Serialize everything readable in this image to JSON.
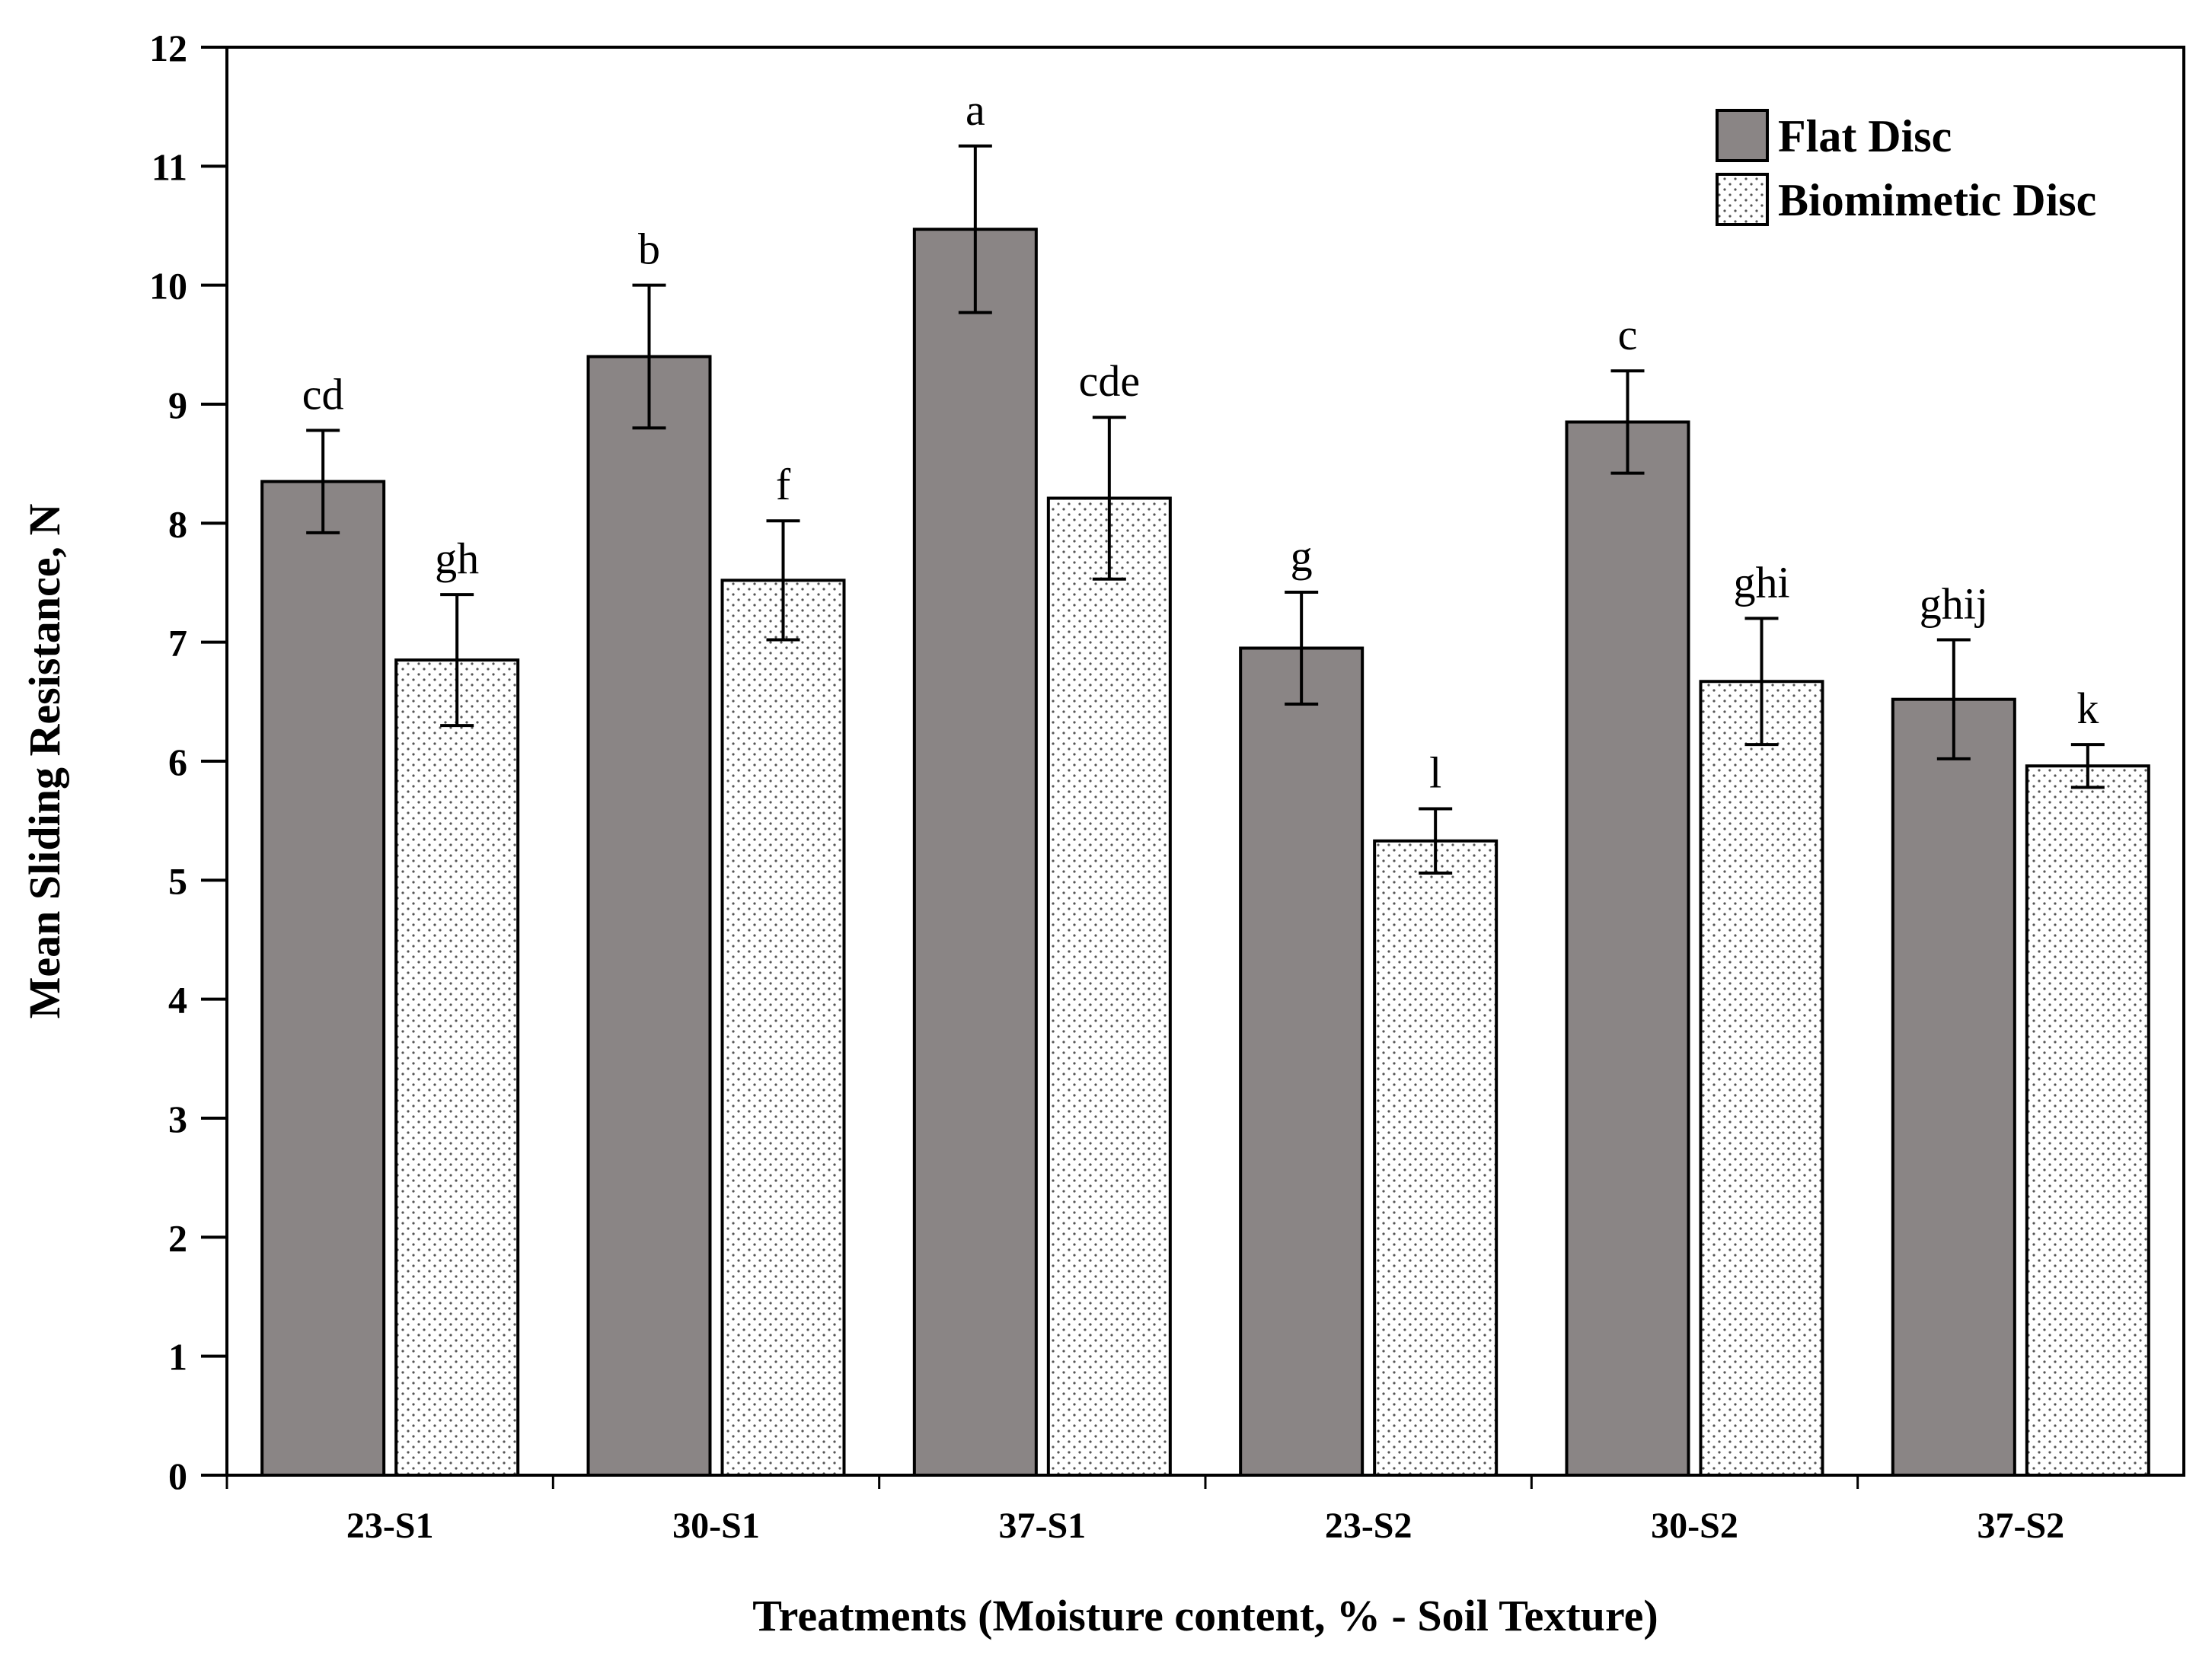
{
  "chart_data": {
    "type": "bar",
    "title": "",
    "xlabel": "Treatments (Moisture content, % - Soil Texture)",
    "ylabel": "Mean Sliding Resistance, N",
    "ylim": [
      0,
      12
    ],
    "yticks": [
      "0",
      "1",
      "2",
      "3",
      "4",
      "5",
      "6",
      "7",
      "8",
      "9",
      "10",
      "11",
      "12"
    ],
    "categories": [
      "23-S1",
      "30-S1",
      "37-S1",
      "23-S2",
      "30-S2",
      "37-S2"
    ],
    "legend_position": "top-right",
    "series": [
      {
        "name": "Flat Disc",
        "fill": "#8a8585",
        "pattern": "solid",
        "values": [
          8.35,
          9.4,
          10.47,
          6.95,
          8.85,
          6.52
        ],
        "errors": [
          0.43,
          0.6,
          0.7,
          0.47,
          0.43,
          0.5
        ],
        "letters": [
          "cd",
          "b",
          "a",
          "g",
          "c",
          "ghij"
        ]
      },
      {
        "name": "Biomimetic Disc",
        "fill": "#ffffff",
        "pattern": "dotted",
        "values": [
          6.85,
          7.52,
          8.21,
          5.33,
          6.67,
          5.96
        ],
        "errors": [
          0.55,
          0.5,
          0.68,
          0.27,
          0.53,
          0.18
        ],
        "letters": [
          "gh",
          "f",
          "cde",
          "l",
          "ghi",
          "k"
        ]
      }
    ]
  }
}
